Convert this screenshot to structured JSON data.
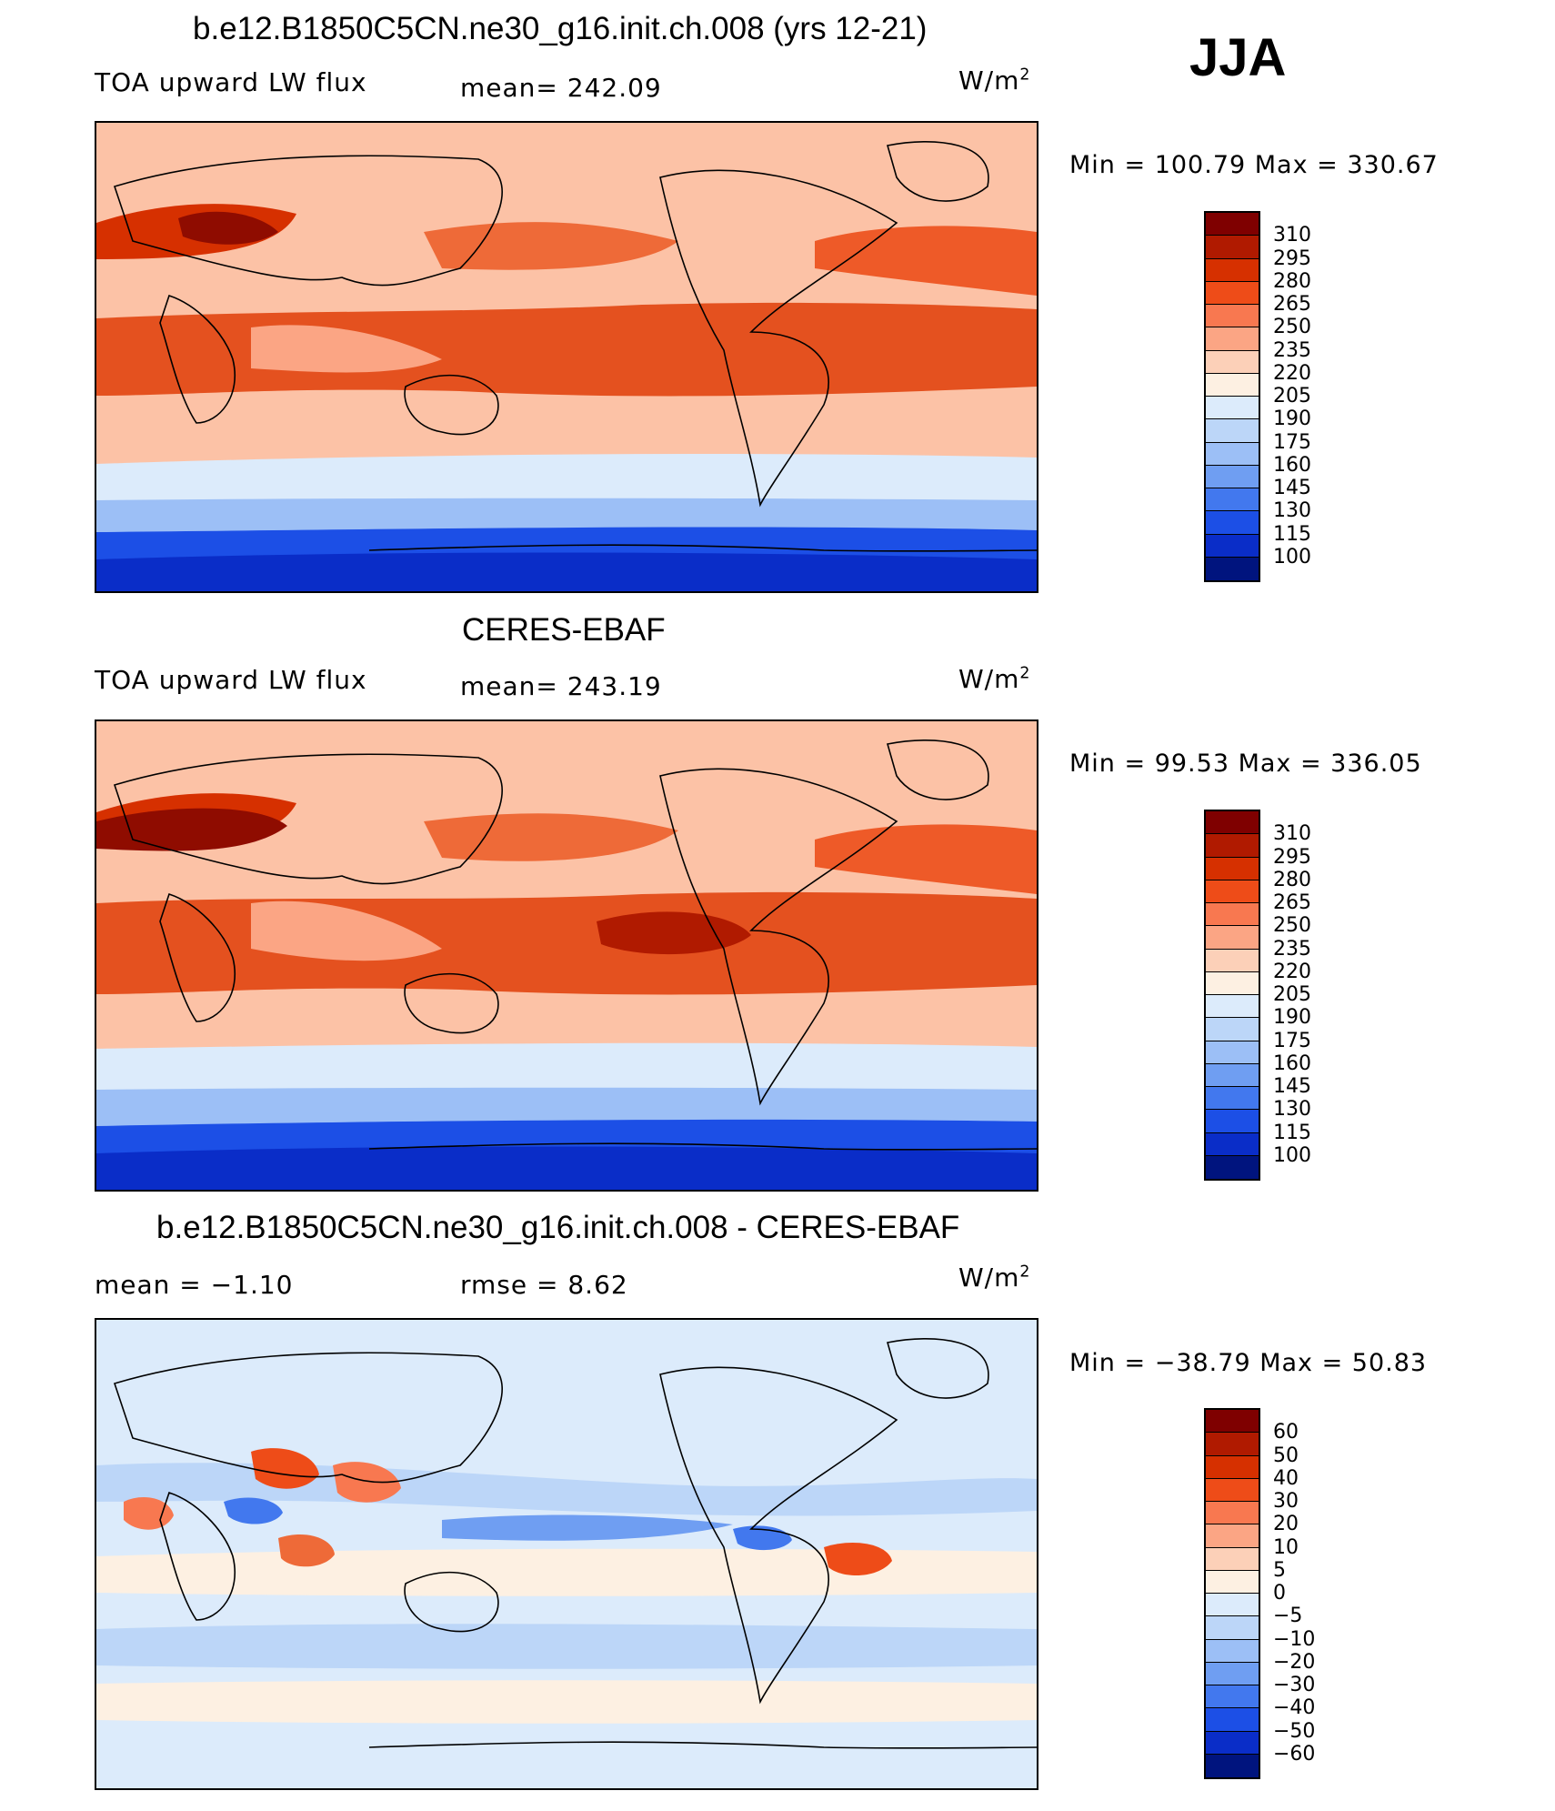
{
  "season": "JJA",
  "panels": [
    {
      "title": "b.e12.B1850C5CN.ne30_g16.init.ch.008 (yrs 12-21)",
      "left": "TOA upward LW flux",
      "center": "mean=  242.09",
      "units": "W/m",
      "units_sup": "2",
      "minmax": "Min  =  100.79  Max  =  330.67",
      "scale": "abs"
    },
    {
      "title": "CERES-EBAF",
      "left": "TOA upward LW flux",
      "center": "mean=  243.19",
      "units": "W/m",
      "units_sup": "2",
      "minmax": "Min  =    99.53  Max  =  336.05",
      "scale": "abs"
    },
    {
      "title": "b.e12.B1850C5CN.ne30_g16.init.ch.008 - CERES-EBAF",
      "left": "mean  =    −1.10",
      "center": "rmse  =      8.62",
      "units": "W/m",
      "units_sup": "2",
      "minmax": "Min  =  −38.79  Max  =     50.83",
      "scale": "diff"
    }
  ],
  "colorbars": {
    "abs": {
      "labels": [
        "310",
        "295",
        "280",
        "265",
        "250",
        "235",
        "220",
        "205",
        "190",
        "175",
        "160",
        "145",
        "130",
        "115",
        "100"
      ],
      "colors": [
        "#7f0000",
        "#b01a00",
        "#d63000",
        "#ee4c18",
        "#f87850",
        "#fba584",
        "#fcd0b8",
        "#fdf0e2",
        "#dcebfb",
        "#bcd6f8",
        "#9cbff6",
        "#6f9ef2",
        "#4278ee",
        "#1c4fe6",
        "#0a2dc8",
        "#00147e"
      ]
    },
    "diff": {
      "labels": [
        "60",
        "50",
        "40",
        "30",
        "20",
        "10",
        "5",
        "0",
        "−5",
        "−10",
        "−20",
        "−30",
        "−40",
        "−50",
        "−60"
      ],
      "colors": [
        "#7f0000",
        "#b01a00",
        "#d63000",
        "#ee4c18",
        "#f87850",
        "#fba584",
        "#fcd0b8",
        "#fdf0e2",
        "#dcebfb",
        "#bcd6f8",
        "#9cbff6",
        "#6f9ef2",
        "#4278ee",
        "#1c4fe6",
        "#0a2dc8",
        "#00147e"
      ]
    }
  }
}
